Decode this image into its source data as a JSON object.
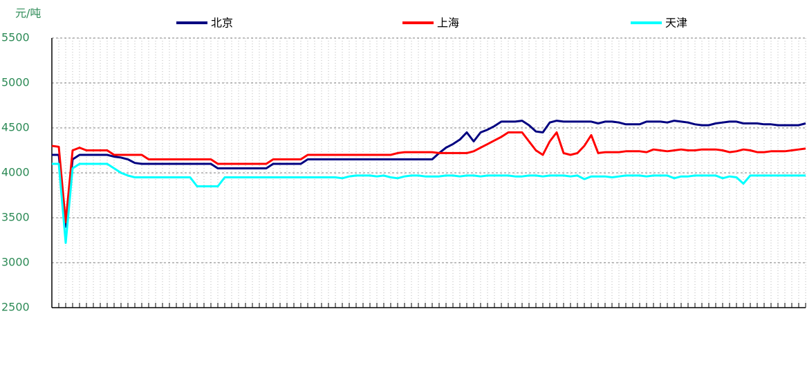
{
  "chart_data": {
    "type": "line",
    "y_label": "元/吨",
    "categories": [
      null,
      null,
      null,
      null,
      null,
      null,
      null,
      null,
      null,
      null,
      null,
      null,
      null,
      null,
      null,
      null,
      null,
      null,
      null,
      null,
      null,
      null,
      null,
      null,
      null,
      null,
      null,
      null,
      null,
      null,
      null,
      null,
      null,
      null,
      null,
      null,
      null,
      null,
      null,
      null,
      null,
      null,
      null,
      null,
      null,
      null,
      null,
      null,
      null,
      null,
      null,
      null,
      null,
      null,
      null,
      null,
      null,
      null,
      null,
      null,
      null,
      null,
      null,
      null,
      null,
      null,
      null,
      null,
      null,
      null,
      null,
      null,
      null,
      null,
      null,
      null,
      null,
      null,
      null,
      null,
      null,
      null,
      null,
      null,
      null,
      null,
      null,
      null,
      null,
      null,
      null,
      null,
      null,
      null,
      null,
      null,
      null,
      null,
      null,
      null,
      null,
      null,
      null,
      null,
      null,
      null,
      null,
      null,
      null,
      null
    ],
    "series": [
      {
        "name": "北京",
        "color": "#000080",
        "values": [
          4200,
          4200,
          3400,
          4150,
          4200,
          4200,
          4200,
          4200,
          4200,
          4180,
          4170,
          4150,
          4110,
          4100,
          4100,
          4100,
          4100,
          4100,
          4100,
          4100,
          4100,
          4100,
          4100,
          4100,
          4050,
          4050,
          4050,
          4050,
          4050,
          4050,
          4050,
          4050,
          4100,
          4100,
          4100,
          4100,
          4100,
          4150,
          4150,
          4150,
          4150,
          4150,
          4150,
          4150,
          4150,
          4150,
          4150,
          4150,
          4150,
          4150,
          4150,
          4150,
          4150,
          4150,
          4150,
          4150,
          4220,
          4280,
          4320,
          4370,
          4450,
          4350,
          4450,
          4480,
          4520,
          4570,
          4570,
          4570,
          4580,
          4530,
          4460,
          4450,
          4560,
          4580,
          4570,
          4570,
          4570,
          4570,
          4570,
          4550,
          4570,
          4570,
          4560,
          4540,
          4540,
          4540,
          4570,
          4570,
          4570,
          4560,
          4580,
          4570,
          4560,
          4540,
          4530,
          4530,
          4550,
          4560,
          4570,
          4570,
          4550,
          4550,
          4550,
          4540,
          4540,
          4530,
          4530,
          4530,
          4530,
          4550
        ]
      },
      {
        "name": "上海",
        "color": "#ff0000",
        "values": [
          4300,
          4290,
          3450,
          4250,
          4280,
          4250,
          4250,
          4250,
          4250,
          4200,
          4200,
          4200,
          4200,
          4200,
          4150,
          4150,
          4150,
          4150,
          4150,
          4150,
          4150,
          4150,
          4150,
          4150,
          4100,
          4100,
          4100,
          4100,
          4100,
          4100,
          4100,
          4100,
          4150,
          4150,
          4150,
          4150,
          4150,
          4200,
          4200,
          4200,
          4200,
          4200,
          4200,
          4200,
          4200,
          4200,
          4200,
          4200,
          4200,
          4200,
          4220,
          4230,
          4230,
          4230,
          4230,
          4230,
          4220,
          4220,
          4220,
          4220,
          4220,
          4240,
          4280,
          4320,
          4360,
          4400,
          4450,
          4450,
          4450,
          4350,
          4250,
          4200,
          4350,
          4450,
          4220,
          4200,
          4220,
          4300,
          4420,
          4220,
          4230,
          4230,
          4230,
          4240,
          4240,
          4240,
          4230,
          4260,
          4250,
          4240,
          4250,
          4260,
          4250,
          4250,
          4260,
          4260,
          4260,
          4250,
          4230,
          4240,
          4260,
          4250,
          4230,
          4230,
          4240,
          4240,
          4240,
          4250,
          4260,
          4270
        ]
      },
      {
        "name": "天津",
        "color": "#00ffff",
        "values": [
          4100,
          4100,
          3220,
          4050,
          4100,
          4100,
          4100,
          4100,
          4100,
          4050,
          4000,
          3970,
          3950,
          3950,
          3950,
          3950,
          3950,
          3950,
          3950,
          3950,
          3950,
          3850,
          3850,
          3850,
          3850,
          3950,
          3950,
          3950,
          3950,
          3950,
          3950,
          3950,
          3950,
          3950,
          3950,
          3950,
          3950,
          3950,
          3950,
          3950,
          3950,
          3950,
          3940,
          3960,
          3970,
          3970,
          3970,
          3960,
          3970,
          3950,
          3940,
          3960,
          3970,
          3970,
          3960,
          3960,
          3960,
          3970,
          3970,
          3960,
          3970,
          3970,
          3960,
          3970,
          3970,
          3970,
          3970,
          3960,
          3960,
          3970,
          3970,
          3960,
          3970,
          3970,
          3970,
          3960,
          3970,
          3930,
          3960,
          3960,
          3960,
          3950,
          3960,
          3970,
          3970,
          3970,
          3960,
          3970,
          3970,
          3970,
          3940,
          3960,
          3960,
          3970,
          3970,
          3970,
          3970,
          3940,
          3960,
          3950,
          3880,
          3970,
          3970,
          3970,
          3970,
          3970,
          3970,
          3970,
          3970,
          3970
        ]
      }
    ],
    "ylim": [
      2500,
      5500
    ],
    "yticks": [
      2500,
      3000,
      3500,
      4000,
      4500,
      5000,
      5500
    ],
    "grid": true
  }
}
